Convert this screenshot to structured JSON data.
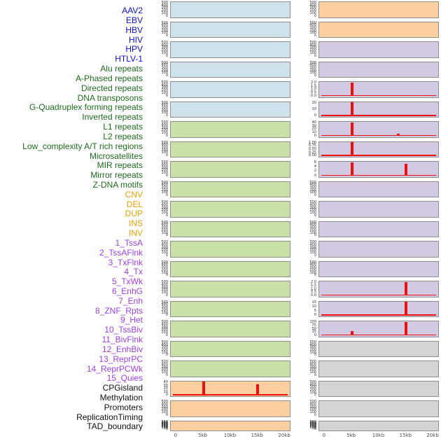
{
  "chart_data": {
    "type": "bar",
    "description": "Grid of per-feature signal profile mini-panels over a 0-20kb window; 44 features split into two columns of 22 panels; red bars mark signal spikes",
    "columns": 2,
    "rows_per_column": 22,
    "x_tick_labels": [
      "0",
      "5kb",
      "10kb",
      "15kb",
      "20kb"
    ],
    "x_tick_kb": [
      0,
      5,
      10,
      15,
      20
    ],
    "x_range_kb": [
      0,
      20
    ],
    "default_yticks": [
      "500",
      "400",
      "300",
      "200",
      "100",
      "0"
    ],
    "colors": {
      "label": {
        "virus": "#0d0dde",
        "repeat": "#1d6b1d",
        "sv": "#f0a000",
        "chromhmm": "#a040e8",
        "other": "#111111"
      },
      "panel": {
        "virus": "#cee2eb",
        "repeat": "#c9e0a6",
        "sv": "#fccfa0",
        "chromhmm": "#d3c9e2",
        "other": "#d4d4d4"
      },
      "panel_border": "#8f8f8f",
      "spike": "#ee100c",
      "tick_text": "#303030",
      "axis_text": "#4d4d4d"
    },
    "rows": [
      {
        "label": "AAV2",
        "group": "virus",
        "yticks": [
          "500",
          "400",
          "300",
          "200",
          "100",
          "0"
        ],
        "spikes": [],
        "baseline": false
      },
      {
        "label": "EBV",
        "group": "virus",
        "yticks": [
          "500",
          "400",
          "300",
          "200",
          "100",
          "0"
        ],
        "spikes": [],
        "baseline": false
      },
      {
        "label": "HBV",
        "group": "virus",
        "yticks": [
          "500",
          "400",
          "300",
          "200",
          "100",
          "0"
        ],
        "spikes": [],
        "baseline": false
      },
      {
        "label": "HIV",
        "group": "virus",
        "yticks": [
          "500",
          "400",
          "300",
          "200",
          "100",
          "0"
        ],
        "spikes": [],
        "baseline": false
      },
      {
        "label": "HPV",
        "group": "virus",
        "yticks": [
          "500",
          "400",
          "300",
          "200",
          "100",
          "0"
        ],
        "spikes": [],
        "baseline": false
      },
      {
        "label": "HTLV-1",
        "group": "virus",
        "yticks": [
          "500",
          "400",
          "300",
          "200",
          "100",
          "0"
        ],
        "spikes": [],
        "baseline": false
      },
      {
        "label": "Alu repeats",
        "group": "repeat",
        "yticks": [
          "500",
          "400",
          "300",
          "200",
          "100",
          "0"
        ],
        "spikes": [],
        "baseline": false
      },
      {
        "label": "A-Phased repeats",
        "group": "repeat",
        "yticks": [
          "500",
          "400",
          "300",
          "200",
          "100",
          "0"
        ],
        "spikes": [],
        "baseline": false
      },
      {
        "label": "Directed repeats",
        "group": "repeat",
        "yticks": [
          "500",
          "400",
          "300",
          "200",
          "100",
          "0"
        ],
        "spikes": [],
        "baseline": false
      },
      {
        "label": "DNA transposons",
        "group": "repeat",
        "yticks": [
          "500",
          "400",
          "300",
          "200",
          "100",
          "0"
        ],
        "spikes": [],
        "baseline": false
      },
      {
        "label": "G-Quadruplex forming repeats",
        "group": "repeat",
        "yticks": [
          "500",
          "400",
          "300",
          "200",
          "100",
          "0"
        ],
        "spikes": [],
        "baseline": false
      },
      {
        "label": "Inverted repeats",
        "group": "repeat",
        "yticks": [
          "500",
          "400",
          "300",
          "200",
          "100",
          "0"
        ],
        "spikes": [],
        "baseline": false
      },
      {
        "label": "L1 repeats",
        "group": "repeat",
        "yticks": [
          "500",
          "400",
          "300",
          "200",
          "100",
          "0"
        ],
        "spikes": [],
        "baseline": false
      },
      {
        "label": "L2 repeats",
        "group": "repeat",
        "yticks": [
          "500",
          "400",
          "300",
          "200",
          "100",
          "0"
        ],
        "spikes": [],
        "baseline": false
      },
      {
        "label": "Low_complexity A/T rich regions",
        "group": "repeat",
        "yticks": [
          "500",
          "400",
          "300",
          "200",
          "100",
          "0"
        ],
        "spikes": [],
        "baseline": false
      },
      {
        "label": "Microsatellites",
        "group": "repeat",
        "yticks": [
          "500",
          "400",
          "300",
          "200",
          "100",
          "0"
        ],
        "spikes": [],
        "baseline": false
      },
      {
        "label": "MIR repeats",
        "group": "repeat",
        "yticks": [
          "500",
          "400",
          "300",
          "200",
          "100",
          "0"
        ],
        "spikes": [],
        "baseline": false
      },
      {
        "label": "Mirror repeats",
        "group": "repeat",
        "yticks": [
          "500",
          "400",
          "300",
          "200",
          "100",
          "0"
        ],
        "spikes": [],
        "baseline": false
      },
      {
        "label": "Z-DNA motifs",
        "group": "repeat",
        "yticks": [
          "500",
          "400",
          "300",
          "200",
          "100",
          "0"
        ],
        "spikes": [],
        "baseline": false
      },
      {
        "label": "CNV",
        "group": "sv",
        "yticks": [
          "40",
          "30",
          "20",
          "10",
          "0"
        ],
        "spikes": [
          [
            5,
            1.0
          ],
          [
            15,
            0.82
          ]
        ],
        "baseline": true
      },
      {
        "label": "DEL",
        "group": "sv",
        "yticks": [
          "500",
          "400",
          "300",
          "200",
          "100",
          "0"
        ],
        "spikes": [],
        "baseline": false
      },
      {
        "label": "DUP",
        "group": "sv",
        "yticks": [
          "500",
          "450",
          "400",
          "350",
          "300",
          "250",
          "200",
          "150",
          "100",
          "50",
          "0"
        ],
        "spikes": [],
        "baseline": false
      },
      {
        "label": "INS",
        "group": "sv",
        "yticks": [
          "500",
          "400",
          "300",
          "200",
          "100",
          "0"
        ],
        "spikes": [],
        "baseline": false
      },
      {
        "label": "INV",
        "group": "sv",
        "yticks": [
          "500",
          "400",
          "300",
          "200",
          "100",
          "0"
        ],
        "spikes": [],
        "baseline": false
      },
      {
        "label": "1_TssA",
        "group": "chromhmm",
        "yticks": [
          "500",
          "400",
          "300",
          "200",
          "100",
          "0"
        ],
        "spikes": [],
        "baseline": false
      },
      {
        "label": "2_TssAFlnk",
        "group": "chromhmm",
        "yticks": [
          "500",
          "400",
          "300",
          "200",
          "100",
          "0"
        ],
        "spikes": [],
        "baseline": false
      },
      {
        "label": "3_TxFlnk",
        "group": "chromhmm",
        "yticks": [
          "2.0",
          "1.5",
          "1.0",
          "0.5",
          "0.0"
        ],
        "spikes": [
          [
            5,
            1.0
          ]
        ],
        "baseline": true
      },
      {
        "label": "4_Tx",
        "group": "chromhmm",
        "yticks": [
          "20",
          "10",
          "0"
        ],
        "spikes": [
          [
            5,
            1.0
          ]
        ],
        "baseline": true
      },
      {
        "label": "5_TxWk",
        "group": "chromhmm",
        "yticks": [
          "40",
          "30",
          "20",
          "10",
          "0"
        ],
        "spikes": [
          [
            5,
            1.0
          ],
          [
            13.6,
            0.15
          ]
        ],
        "baseline": true
      },
      {
        "label": "6_EnhG",
        "group": "chromhmm",
        "yticks": [
          "1.00",
          "0.75",
          "0.50",
          "0.25",
          "0.00"
        ],
        "spikes": [
          [
            5,
            1.0
          ]
        ],
        "baseline": true
      },
      {
        "label": "7_Enh",
        "group": "chromhmm",
        "yticks": [
          "6",
          "4",
          "2",
          "0"
        ],
        "spikes": [
          [
            5,
            1.0
          ],
          [
            15,
            0.9
          ]
        ],
        "baseline": true
      },
      {
        "label": "8_ZNF_Rpts",
        "group": "chromhmm",
        "yticks": [
          "500",
          "400",
          "300",
          "200",
          "100",
          "0"
        ],
        "spikes": [],
        "baseline": false
      },
      {
        "label": "9_Het",
        "group": "chromhmm",
        "yticks": [
          "500",
          "400",
          "300",
          "200",
          "100",
          "0"
        ],
        "spikes": [],
        "baseline": false
      },
      {
        "label": "10_TssBiv",
        "group": "chromhmm",
        "yticks": [
          "500",
          "400",
          "300",
          "200",
          "100",
          "0"
        ],
        "spikes": [],
        "baseline": false
      },
      {
        "label": "11_BivFlnk",
        "group": "chromhmm",
        "yticks": [
          "500",
          "400",
          "300",
          "200",
          "100",
          "0"
        ],
        "spikes": [],
        "baseline": false
      },
      {
        "label": "12_EnhBiv",
        "group": "chromhmm",
        "yticks": [
          "500",
          "400",
          "300",
          "200",
          "100",
          "0"
        ],
        "spikes": [],
        "baseline": false
      },
      {
        "label": "13_ReprPC",
        "group": "chromhmm",
        "yticks": [
          "2.0",
          "1.5",
          "1.0",
          "0.5",
          "0.0"
        ],
        "spikes": [
          [
            15,
            1.0
          ]
        ],
        "baseline": true
      },
      {
        "label": "14_ReprPCWk",
        "group": "chromhmm",
        "yticks": [
          "15",
          "10",
          "5",
          "0"
        ],
        "spikes": [
          [
            15,
            1.0
          ]
        ],
        "baseline": true
      },
      {
        "label": "15_Quies",
        "group": "chromhmm",
        "yticks": [
          "100",
          "75",
          "50",
          "25",
          "0"
        ],
        "spikes": [
          [
            5,
            0.35
          ],
          [
            15,
            1.0
          ]
        ],
        "baseline": true
      },
      {
        "label": "CPGisland",
        "group": "other",
        "yticks": [
          "500",
          "400",
          "300",
          "200",
          "100",
          "0"
        ],
        "spikes": [],
        "baseline": false
      },
      {
        "label": "Methylation",
        "group": "other",
        "yticks": [
          "500",
          "400",
          "300",
          "200",
          "100",
          "0"
        ],
        "spikes": [],
        "baseline": false
      },
      {
        "label": "Promoters",
        "group": "other",
        "yticks": [
          "500",
          "400",
          "300",
          "200",
          "100",
          "0"
        ],
        "spikes": [],
        "baseline": false
      },
      {
        "label": "ReplicationTiming",
        "group": "other",
        "yticks": [
          "500",
          "400",
          "300",
          "200",
          "100",
          "0"
        ],
        "spikes": [],
        "baseline": false
      },
      {
        "label": "TAD_boundary",
        "group": "other",
        "yticks": [
          "500",
          "450",
          "400",
          "350",
          "300",
          "250",
          "200",
          "150",
          "100",
          "50",
          "0"
        ],
        "spikes": [],
        "baseline": false
      }
    ]
  }
}
